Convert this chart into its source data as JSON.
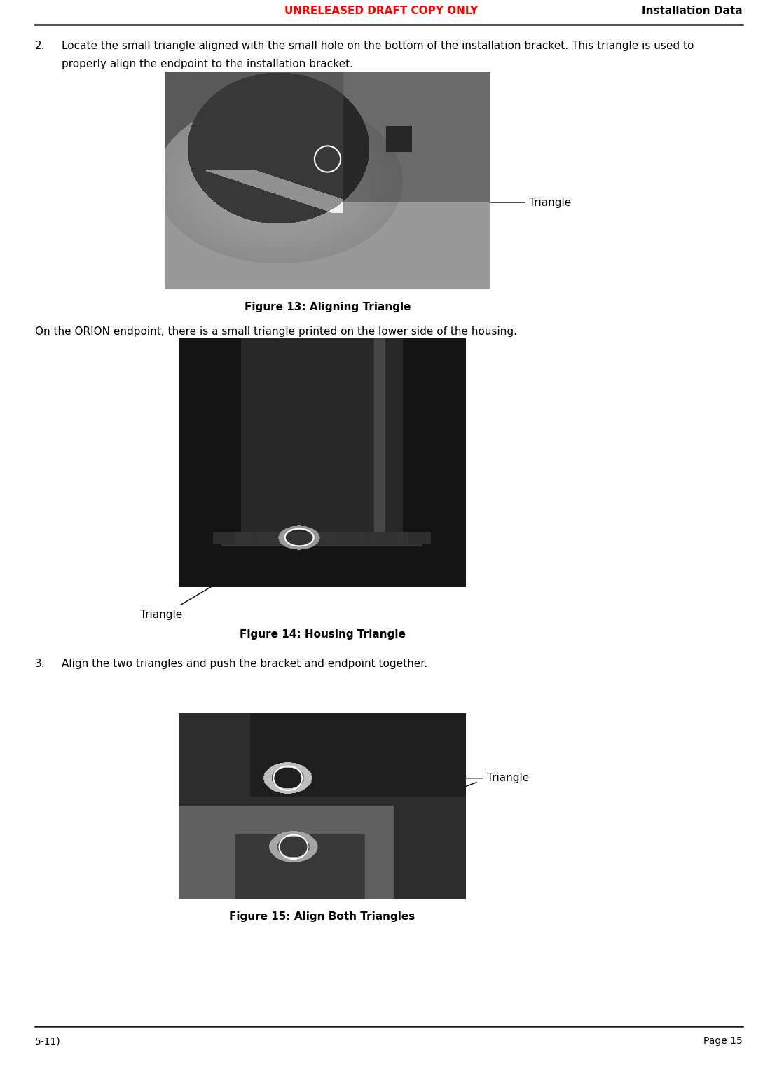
{
  "header_left": "UNRELEASED DRAFT COPY ONLY",
  "header_right": "Installation Data",
  "header_left_color": "#ff0000",
  "header_right_color": "#000000",
  "footer_left": "5-11)",
  "footer_right": "Page 15",
  "footer_color": "#000000",
  "background_color": "#ffffff",
  "body_text_color": "#000000",
  "fig13_caption": "Figure 13: Aligning Triangle",
  "fig13_annotation": "Triangle",
  "fig14_text": "On the ORION endpoint, there is a small triangle printed on the lower side of the housing.",
  "fig14_caption": "Figure 14: Housing Triangle",
  "fig14_annotation": "Triangle",
  "fig15_caption": "Figure 15: Align Both Triangles",
  "fig15_annotation": "Triangle",
  "line_color": "#1a1a1a",
  "caption_fontsize": 11,
  "body_fontsize": 11,
  "header_fontsize": 11,
  "footer_fontsize": 10,
  "item2_line1": "Locate the small triangle aligned with the small hole on the bottom of the installation bracket. This triangle is used to",
  "item2_line2": "properly align the endpoint to the installation bracket.",
  "item3_text": "Align the two triangles and push the bracket and endpoint together."
}
